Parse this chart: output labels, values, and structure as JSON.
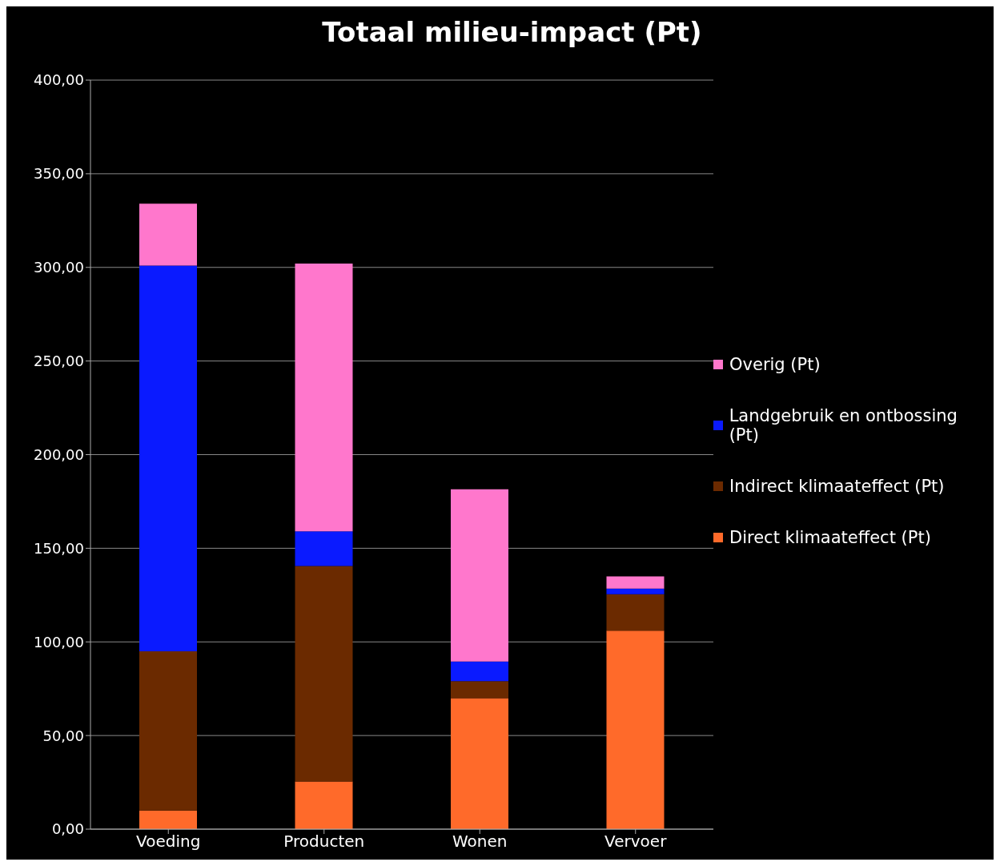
{
  "chart_data": {
    "type": "bar",
    "title": "Totaal milieu-impact (Pt)",
    "categories": [
      "Voeding",
      "Producten",
      "Wonen",
      "Vervoer"
    ],
    "stacked": true,
    "series": [
      {
        "name": "Direct klimaateffect (Pt)",
        "color": "#ff6a2a",
        "values": [
          10,
          25.5,
          70,
          106
        ]
      },
      {
        "name": "Indirect klimaateffect (Pt)",
        "color": "#6b2a00",
        "values": [
          85,
          115,
          9,
          19.5
        ]
      },
      {
        "name": "Landgebruik en ontbossing (Pt)",
        "color": "#0a1aff",
        "values": [
          206,
          18.5,
          10.5,
          3
        ]
      },
      {
        "name": "Overig (Pt)",
        "color": "#ff77cc",
        "values": [
          33,
          143,
          92,
          6.5
        ]
      }
    ],
    "ylim": [
      0,
      400
    ],
    "yticks": [
      {
        "value": 0,
        "label": "0,00"
      },
      {
        "value": 50,
        "label": "50,00"
      },
      {
        "value": 100,
        "label": "100,00"
      },
      {
        "value": 150,
        "label": "150,00"
      },
      {
        "value": 200,
        "label": "200,00"
      },
      {
        "value": 250,
        "label": "250,00"
      },
      {
        "value": 300,
        "label": "300,00"
      },
      {
        "value": 350,
        "label": "350,00"
      },
      {
        "value": 400,
        "label": "400,00"
      }
    ],
    "grid": "y",
    "legend": "right"
  }
}
